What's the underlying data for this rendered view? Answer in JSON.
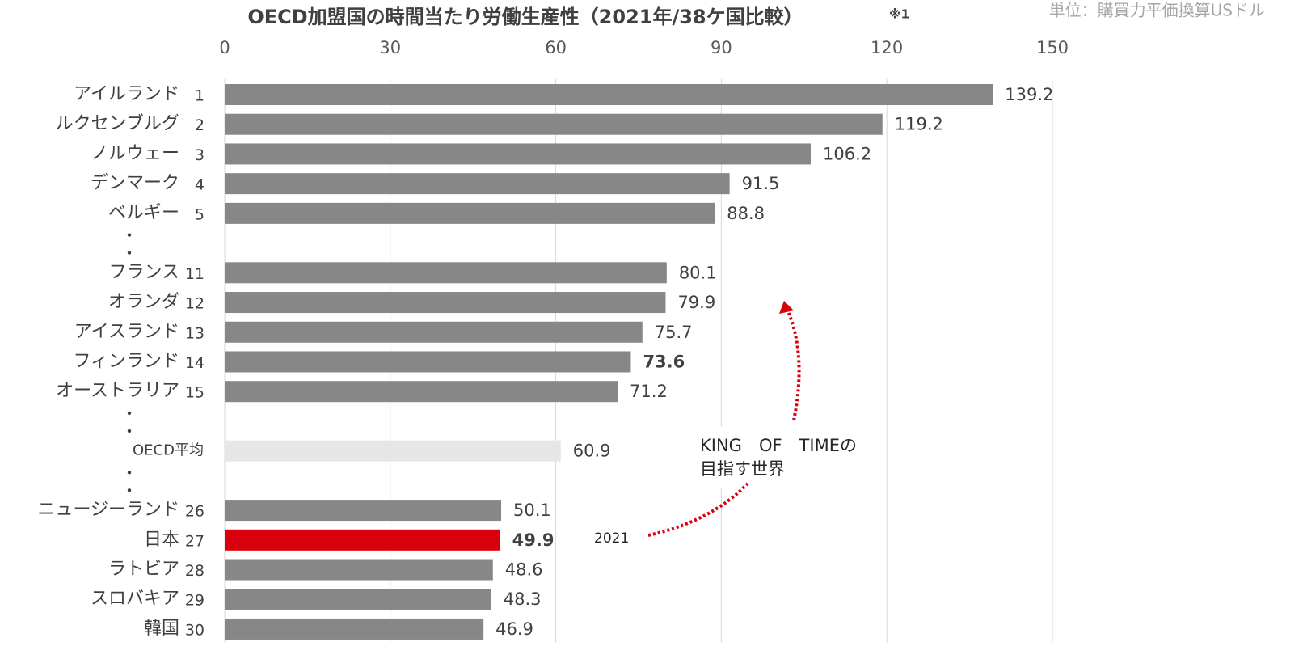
{
  "chart_data": {
    "type": "hbar",
    "title": "OECD加盟国の時間当たり労働生産性（2021年/38ケ国比較）",
    "title_note": "※1",
    "unit": "単位：購買力平価換算USドル",
    "annotation": [
      "KING　OF　TIMEの",
      "目指す世界"
    ],
    "year_label": "2021",
    "categories": [
      "アイルランド",
      "ルクセンブルグ",
      "ノルウェー",
      "デンマーク",
      "ベルギー",
      null,
      "フランス",
      "オランダ",
      "アイスランド",
      "フィンランド",
      "オーストラリア",
      null,
      "OECD平均",
      null,
      "ニュージーランド",
      "日本",
      "ラトビア",
      "スロバキア",
      "韓国"
    ],
    "ranks": [
      1,
      2,
      3,
      4,
      5,
      null,
      11,
      12,
      13,
      14,
      15,
      null,
      null,
      null,
      26,
      27,
      28,
      29,
      30
    ],
    "values": [
      139.2,
      119.2,
      106.2,
      91.5,
      88.8,
      null,
      80.1,
      79.9,
      75.7,
      73.6,
      71.2,
      null,
      60.9,
      null,
      50.1,
      49.9,
      48.6,
      48.3,
      46.9
    ],
    "colors": [
      "#878787",
      "#878787",
      "#878787",
      "#878787",
      "#878787",
      null,
      "#878787",
      "#878787",
      "#878787",
      "#878787",
      "#878787",
      null,
      "#e6e6e6",
      null,
      "#878787",
      "#d9000d",
      "#878787",
      "#878787",
      "#878787"
    ],
    "bold_labels": [
      false,
      false,
      false,
      false,
      false,
      null,
      false,
      false,
      false,
      true,
      false,
      null,
      false,
      null,
      false,
      true,
      false,
      false,
      false
    ],
    "xlim": [
      0,
      150
    ],
    "xticks": [
      0,
      30,
      60,
      90,
      120,
      150
    ],
    "grid": true
  }
}
